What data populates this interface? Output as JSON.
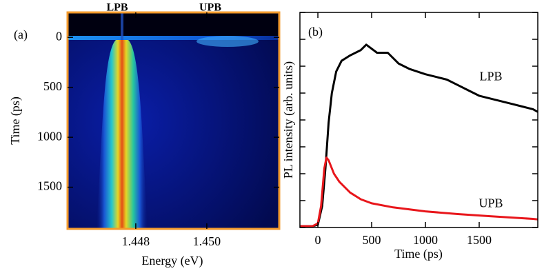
{
  "chart_data": [
    {
      "type": "image",
      "panel_label": "(a)",
      "xlabel": "Energy (eV)",
      "ylabel": "Time (ps)",
      "top_labels": [
        "LPB",
        "UPB"
      ],
      "xlim": [
        1.44608,
        1.45204
      ],
      "xticks": [
        1.448,
        {
          "value": 1.45,
          "label": "1.450"
        }
      ],
      "ylim": [
        -250,
        1917
      ],
      "yticks": [
        0,
        500,
        1000,
        1500
      ],
      "y_inverted": true,
      "frame_color": "#f39a2c"
    },
    {
      "type": "line",
      "panel_label": "(b)",
      "xlabel": "Time (ps)",
      "ylabel": "PL intensity (arb. units)",
      "xlim": [
        -167,
        2045
      ],
      "xticks": [
        0,
        500,
        1000,
        1500
      ],
      "ylim": [
        0,
        8
      ],
      "yticks": [
        0,
        1,
        2,
        3,
        4,
        5,
        6,
        7,
        8
      ],
      "ytick_labels": false,
      "series": [
        {
          "name": "LPB",
          "color": "#000000",
          "x": [
            -167,
            -50,
            0,
            40,
            70,
            100,
            130,
            170,
            220,
            300,
            400,
            450,
            550,
            650,
            750,
            850,
            1000,
            1100,
            1200,
            1300,
            1400,
            1500,
            1600,
            1700,
            1800,
            1900,
            2000,
            2045
          ],
          "values": [
            0.05,
            0.05,
            0.1,
            0.8,
            2.2,
            3.9,
            5.0,
            5.8,
            6.2,
            6.4,
            6.6,
            6.8,
            6.5,
            6.5,
            6.1,
            5.9,
            5.7,
            5.6,
            5.5,
            5.3,
            5.1,
            4.9,
            4.8,
            4.7,
            4.6,
            4.5,
            4.4,
            4.3
          ]
        },
        {
          "name": "UPB",
          "color": "#e8161b",
          "x": [
            -167,
            -50,
            0,
            30,
            60,
            80,
            100,
            150,
            200,
            300,
            400,
            500,
            700,
            1000,
            1300,
            1600,
            2000,
            2045
          ],
          "values": [
            0.05,
            0.05,
            0.15,
            0.8,
            2.2,
            2.6,
            2.5,
            2.0,
            1.7,
            1.3,
            1.05,
            0.9,
            0.75,
            0.6,
            0.5,
            0.42,
            0.32,
            0.3
          ]
        }
      ]
    }
  ]
}
